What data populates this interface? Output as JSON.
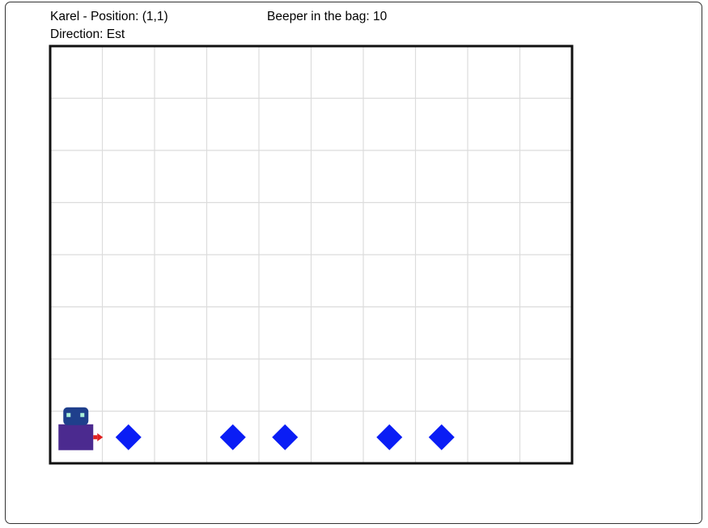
{
  "status": {
    "position_label": "Karel - Position:",
    "position_value": "(1,1)",
    "direction_label": "Direction:",
    "direction_value": "Est",
    "beepers_label": "Beeper in the bag:",
    "beepers_value": "10"
  },
  "world": {
    "columns": 10,
    "rows": 8,
    "karel": {
      "col": 1,
      "row": 1,
      "facing": "east"
    },
    "beepers": [
      {
        "col": 2,
        "row": 1
      },
      {
        "col": 4,
        "row": 1
      },
      {
        "col": 5,
        "row": 1
      },
      {
        "col": 7,
        "row": 1
      },
      {
        "col": 8,
        "row": 1
      }
    ]
  },
  "colors": {
    "grid_line": "#dcdcdc",
    "border": "#111111",
    "beeper": "#0a1df5",
    "karel_body": "#4b2a8f",
    "karel_head": "#1f3f8c",
    "karel_eye": "#a9f0d8",
    "karel_arrow": "#e02020",
    "frame_border": "#333333"
  }
}
